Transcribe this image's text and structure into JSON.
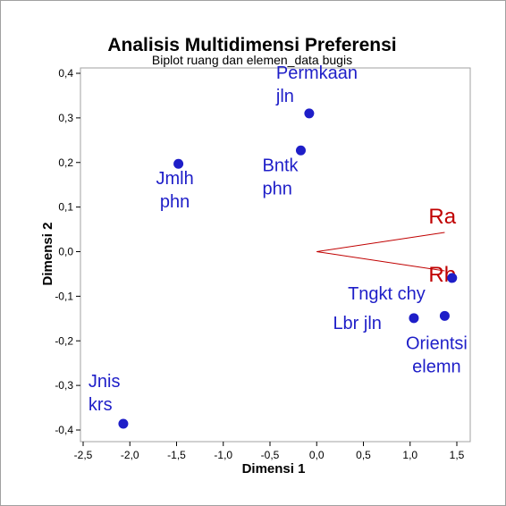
{
  "chart_data": {
    "type": "scatter",
    "title": "Analisis Multidimensi Preferensi",
    "subtitle": "Biplot ruang dan elemen_data bugis",
    "xlabel": "Dimensi 1",
    "ylabel": "Dimensi 2",
    "xlim": [
      -2.5,
      1.5
    ],
    "ylim": [
      -0.4,
      0.4
    ],
    "x_ticks": [
      "-2,5",
      "-2,0",
      "-1,5",
      "-1,0",
      "-0,5",
      "0,0",
      "0,5",
      "1,0",
      "1,5"
    ],
    "y_ticks": [
      "-0,4",
      "-0,3",
      "-0,2",
      "-0,1",
      "0,0",
      "0,1",
      "0,2",
      "0,3",
      "0,4"
    ],
    "grid": false,
    "point_color": "#1e1ec8",
    "vector_color": "#c00000",
    "points": [
      {
        "label_lines": [
          "Permkaan",
          "jln"
        ],
        "x": -0.08,
        "y": 0.31
      },
      {
        "label_lines": [
          "Bntk",
          "phn"
        ],
        "x": -0.17,
        "y": 0.227
      },
      {
        "label_lines": [
          "Jmlh",
          "phn"
        ],
        "x": -1.48,
        "y": 0.197
      },
      {
        "label_lines": [
          "Tngkt chy"
        ],
        "x": 1.45,
        "y": -0.059
      },
      {
        "label_lines": [
          "Lbr jln"
        ],
        "x": 1.04,
        "y": -0.149
      },
      {
        "label_lines": [
          "Orientsi",
          "elemn"
        ],
        "x": 1.37,
        "y": -0.144
      },
      {
        "label_lines": [
          "Jnis",
          "krs"
        ],
        "x": -2.07,
        "y": -0.386
      }
    ],
    "vectors": [
      {
        "name": "Ra",
        "x": 1.37,
        "y": 0.043
      },
      {
        "name": "Rb",
        "x": 1.37,
        "y": -0.043
      }
    ]
  }
}
